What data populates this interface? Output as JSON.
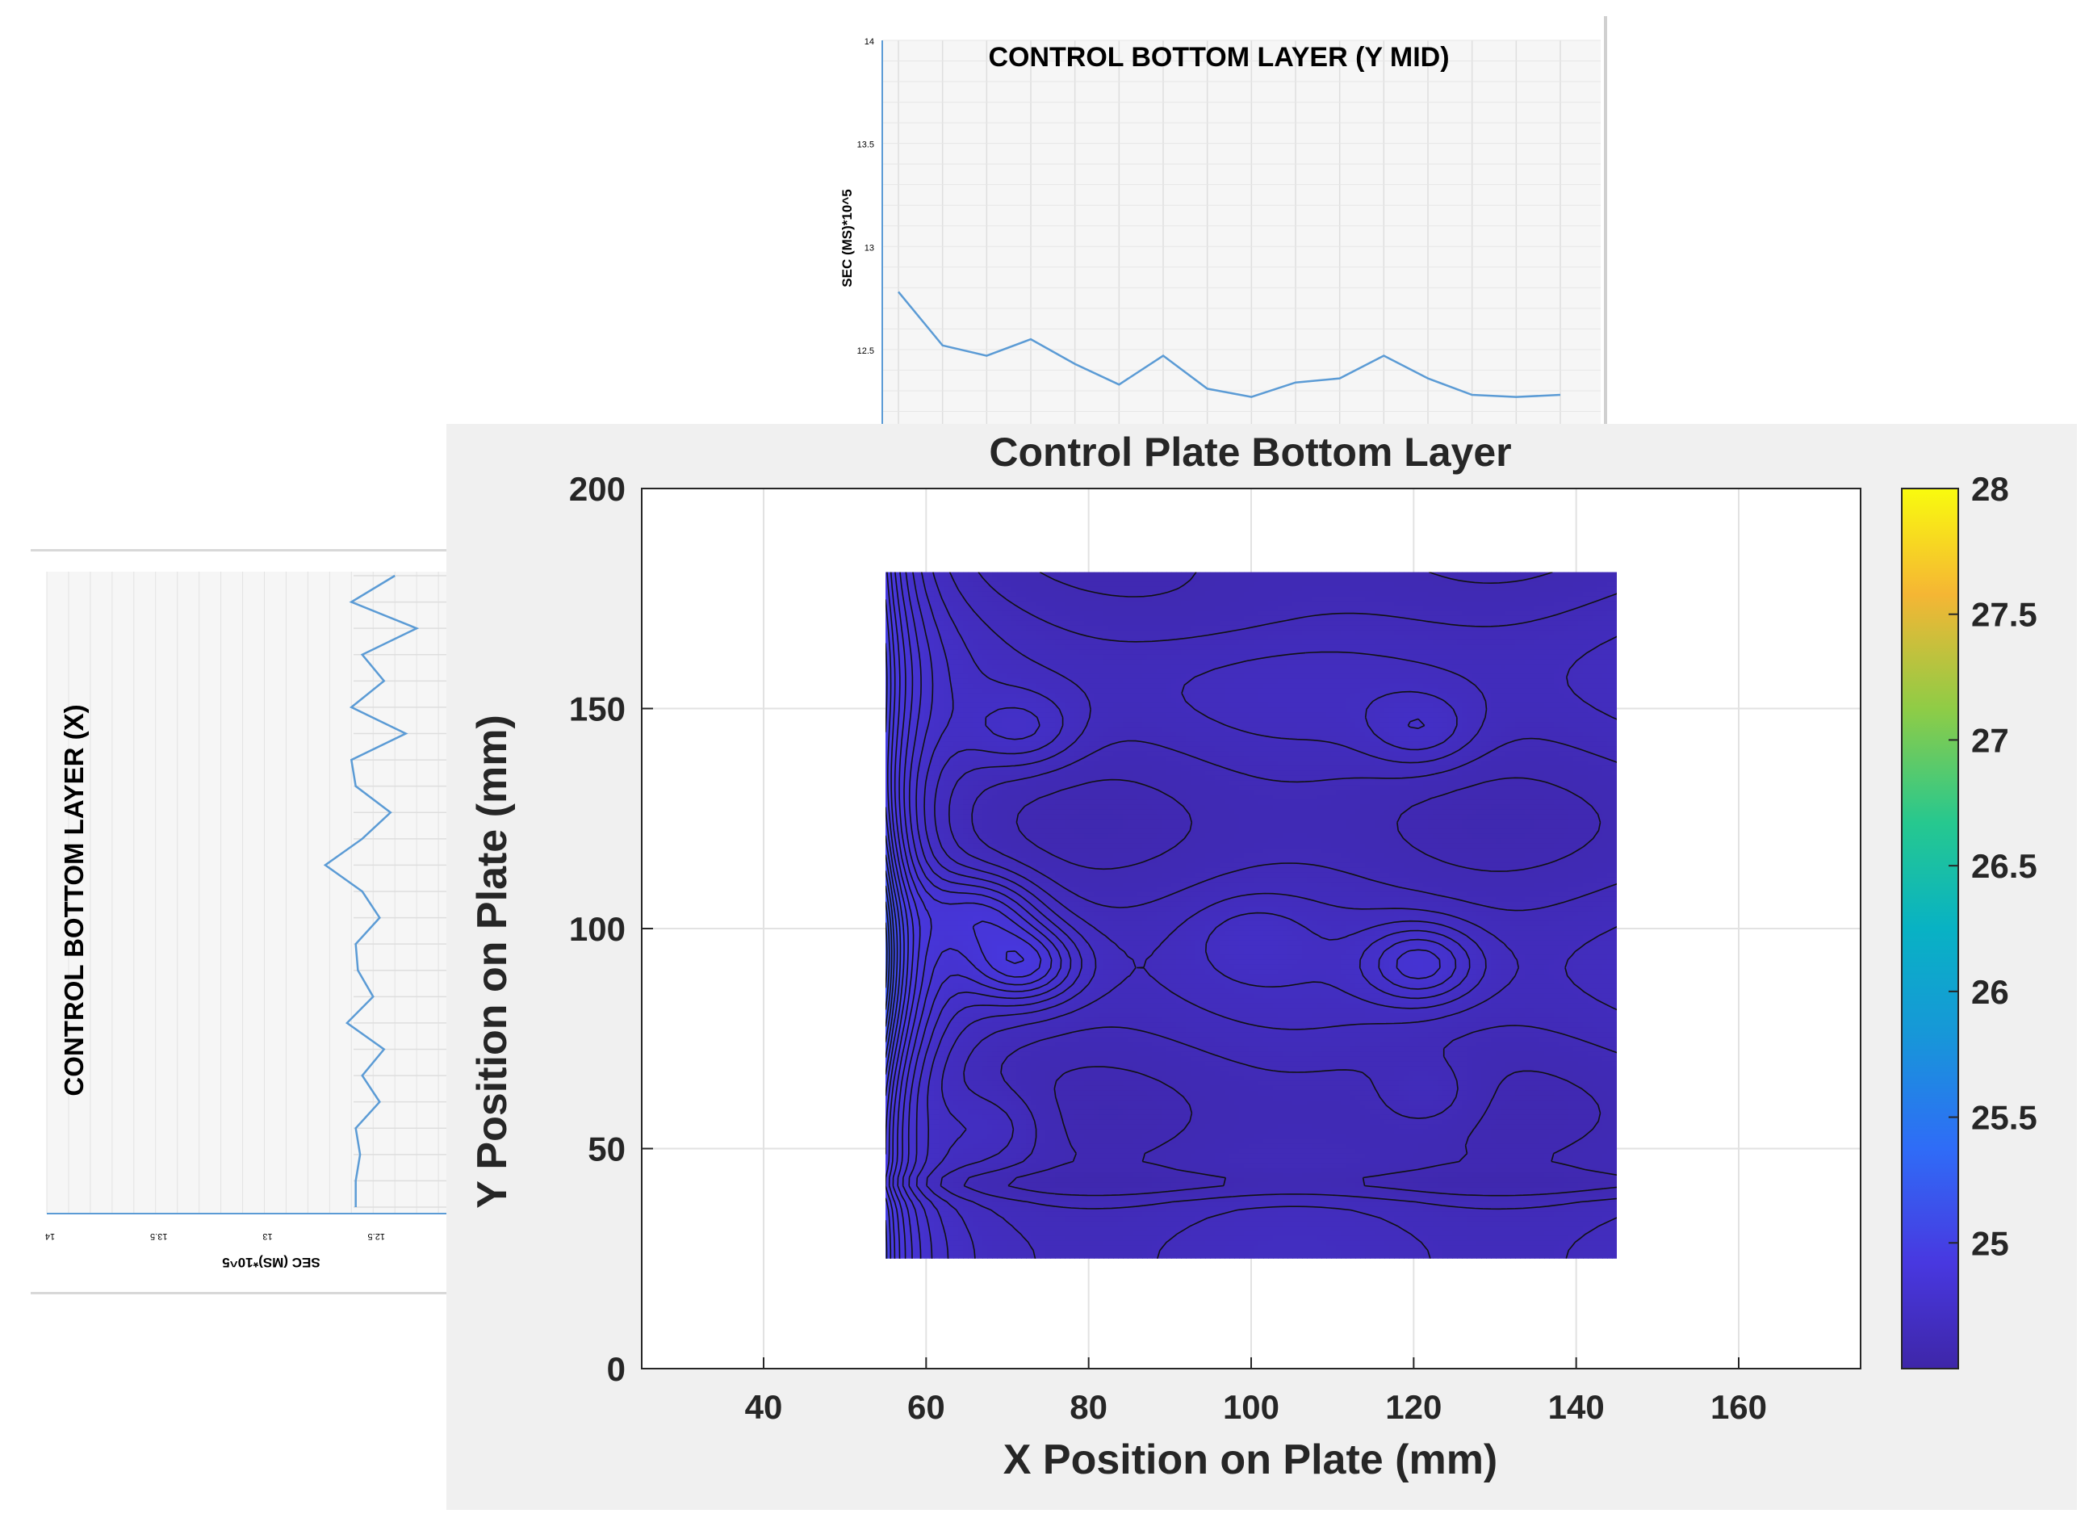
{
  "chart_data": [
    {
      "id": "top",
      "type": "line",
      "title": "CONTROL BOTTOM LAYER (Y MID)",
      "ylabel": "SEC (MS)*10^5",
      "yticks": [
        "14",
        "13.5",
        "13",
        "12.5"
      ],
      "ylim": [
        12.1,
        14
      ],
      "grid": true,
      "color": "#5b9bd5",
      "values": [
        12.78,
        12.52,
        12.47,
        12.55,
        12.43,
        12.33,
        12.47,
        12.31,
        12.27,
        12.34,
        12.36,
        12.47,
        12.36,
        12.28,
        12.27,
        12.28
      ]
    },
    {
      "id": "left",
      "type": "line",
      "orientation": "rotated",
      "title": "CONTROL BOTTOM LAYER (X)",
      "ylabel": "SEC (MS)*10^5",
      "yticks": [
        "14",
        "13.5",
        "13",
        "12.5"
      ],
      "ylim": [
        12.2,
        14
      ],
      "grid": true,
      "color": "#5b9bd5",
      "values": [
        12.4,
        12.6,
        12.3,
        12.55,
        12.45,
        12.6,
        12.35,
        12.6,
        12.58,
        12.42,
        12.55,
        12.72,
        12.55,
        12.47,
        12.58,
        12.57,
        12.5,
        12.62,
        12.45,
        12.55,
        12.47,
        12.58,
        12.56,
        12.58,
        12.58
      ]
    },
    {
      "id": "main",
      "type": "heatmap",
      "title": "Control Plate Bottom Layer",
      "xlabel": "X Position on Plate (mm)",
      "ylabel": "Y Position on Plate (mm)",
      "xlim": [
        25,
        175
      ],
      "ylim": [
        0,
        200
      ],
      "xticks": [
        "40",
        "60",
        "80",
        "100",
        "120",
        "140",
        "160"
      ],
      "yticks": [
        "0",
        "50",
        "100",
        "150",
        "200"
      ],
      "data_extent": {
        "x": [
          55,
          145
        ],
        "y": [
          25,
          181
        ]
      },
      "colorbar": {
        "min": 24.5,
        "max": 28,
        "ticks": [
          "25",
          "25.5",
          "26",
          "26.5",
          "27",
          "27.5",
          "28"
        ]
      },
      "grid": true,
      "colormap": "parula",
      "value_range": [
        24.55,
        25.6
      ]
    }
  ]
}
